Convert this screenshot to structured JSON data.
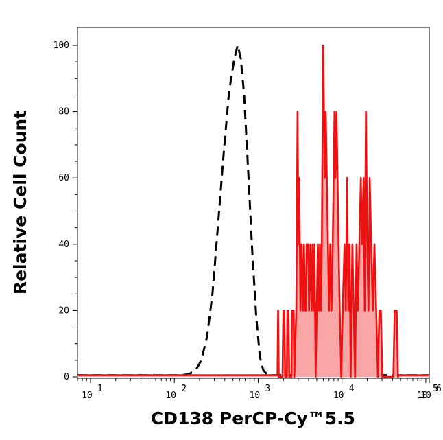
{
  "chart_data": {
    "type": "area",
    "xlabel": "CD138 PerCP-Cy™5.5",
    "ylabel": "Relative Cell Count",
    "x_scale": "log",
    "xlim": [
      7,
      110000
    ],
    "ylim": [
      0,
      105
    ],
    "grid": false,
    "x_ticks": [
      {
        "value": 10,
        "base": "10",
        "exp": "1"
      },
      {
        "value": 100,
        "base": "10",
        "exp": "2"
      },
      {
        "value": 1000,
        "base": "10",
        "exp": "3"
      },
      {
        "value": 10000,
        "base": "10",
        "exp": "4"
      },
      {
        "value": 100000,
        "base": "10",
        "exp": "5"
      },
      {
        "value": 1000000,
        "base": "10",
        "exp": "6"
      }
    ],
    "y_ticks": [
      0,
      20,
      40,
      60,
      80,
      100
    ],
    "series": [
      {
        "style": "dashed",
        "color": "#000000",
        "fill": "none",
        "points": [
          [
            7,
            0.5
          ],
          [
            120,
            0.5
          ],
          [
            150,
            0.8
          ],
          [
            180,
            2
          ],
          [
            210,
            5
          ],
          [
            245,
            12
          ],
          [
            285,
            25
          ],
          [
            330,
            45
          ],
          [
            390,
            68
          ],
          [
            450,
            86
          ],
          [
            520,
            96
          ],
          [
            570,
            100
          ],
          [
            620,
            96
          ],
          [
            680,
            85
          ],
          [
            760,
            62
          ],
          [
            850,
            38
          ],
          [
            950,
            18
          ],
          [
            1050,
            6
          ],
          [
            1150,
            2
          ],
          [
            1300,
            0.5
          ],
          [
            110000,
            0.5
          ]
        ]
      },
      {
        "style": "solid",
        "color": "#ee1111",
        "fill": "#f8a6a6",
        "points": [
          [
            7,
            0.5
          ],
          [
            1650,
            0.5
          ],
          [
            1700,
            0.5
          ],
          [
            1730,
            20
          ],
          [
            1760,
            0
          ],
          [
            1950,
            0
          ],
          [
            2000,
            20
          ],
          [
            2050,
            20
          ],
          [
            2100,
            0
          ],
          [
            2200,
            0
          ],
          [
            2230,
            20
          ],
          [
            2300,
            20
          ],
          [
            2350,
            0
          ],
          [
            2500,
            0
          ],
          [
            2530,
            20
          ],
          [
            2650,
            20
          ],
          [
            2700,
            0
          ],
          [
            2850,
            20
          ],
          [
            2950,
            80
          ],
          [
            3020,
            40
          ],
          [
            3080,
            60
          ],
          [
            3200,
            20
          ],
          [
            3300,
            40
          ],
          [
            3420,
            20
          ],
          [
            3520,
            40
          ],
          [
            3620,
            20
          ],
          [
            3700,
            20
          ],
          [
            3800,
            40
          ],
          [
            3950,
            40
          ],
          [
            4050,
            20
          ],
          [
            4200,
            40
          ],
          [
            4350,
            20
          ],
          [
            4450,
            40
          ],
          [
            4600,
            20
          ],
          [
            4700,
            40
          ],
          [
            4850,
            0
          ],
          [
            5000,
            20
          ],
          [
            5150,
            40
          ],
          [
            5300,
            20
          ],
          [
            5450,
            40
          ],
          [
            5600,
            20
          ],
          [
            5750,
            40
          ],
          [
            5950,
            100
          ],
          [
            6100,
            80
          ],
          [
            6250,
            60
          ],
          [
            6400,
            80
          ],
          [
            6600,
            60
          ],
          [
            6800,
            40
          ],
          [
            7000,
            20
          ],
          [
            7250,
            40
          ],
          [
            7500,
            20
          ],
          [
            7750,
            40
          ],
          [
            7950,
            60
          ],
          [
            8150,
            80
          ],
          [
            8350,
            60
          ],
          [
            8600,
            80
          ],
          [
            8850,
            60
          ],
          [
            9100,
            40
          ],
          [
            9400,
            20
          ],
          [
            9800,
            0
          ],
          [
            10200,
            20
          ],
          [
            10700,
            40
          ],
          [
            11100,
            20
          ],
          [
            11500,
            60
          ],
          [
            11900,
            20
          ],
          [
            12300,
            40
          ],
          [
            12700,
            0
          ],
          [
            13300,
            40
          ],
          [
            13800,
            20
          ],
          [
            14300,
            0
          ],
          [
            14900,
            40
          ],
          [
            15500,
            20
          ],
          [
            16100,
            40
          ],
          [
            16800,
            60
          ],
          [
            17400,
            40
          ],
          [
            18100,
            60
          ],
          [
            18700,
            20
          ],
          [
            19300,
            80
          ],
          [
            20000,
            40
          ],
          [
            20700,
            20
          ],
          [
            21400,
            60
          ],
          [
            22300,
            40
          ],
          [
            23300,
            20
          ],
          [
            24400,
            40
          ],
          [
            25600,
            20
          ],
          [
            26800,
            0
          ],
          [
            27900,
            20
          ],
          [
            29100,
            20
          ],
          [
            30300,
            0
          ],
          [
            33000,
            0
          ],
          [
            41000,
            0
          ],
          [
            42500,
            20
          ],
          [
            45000,
            20
          ],
          [
            46500,
            0
          ],
          [
            48000,
            0.5
          ],
          [
            110000,
            0.5
          ]
        ]
      }
    ]
  }
}
